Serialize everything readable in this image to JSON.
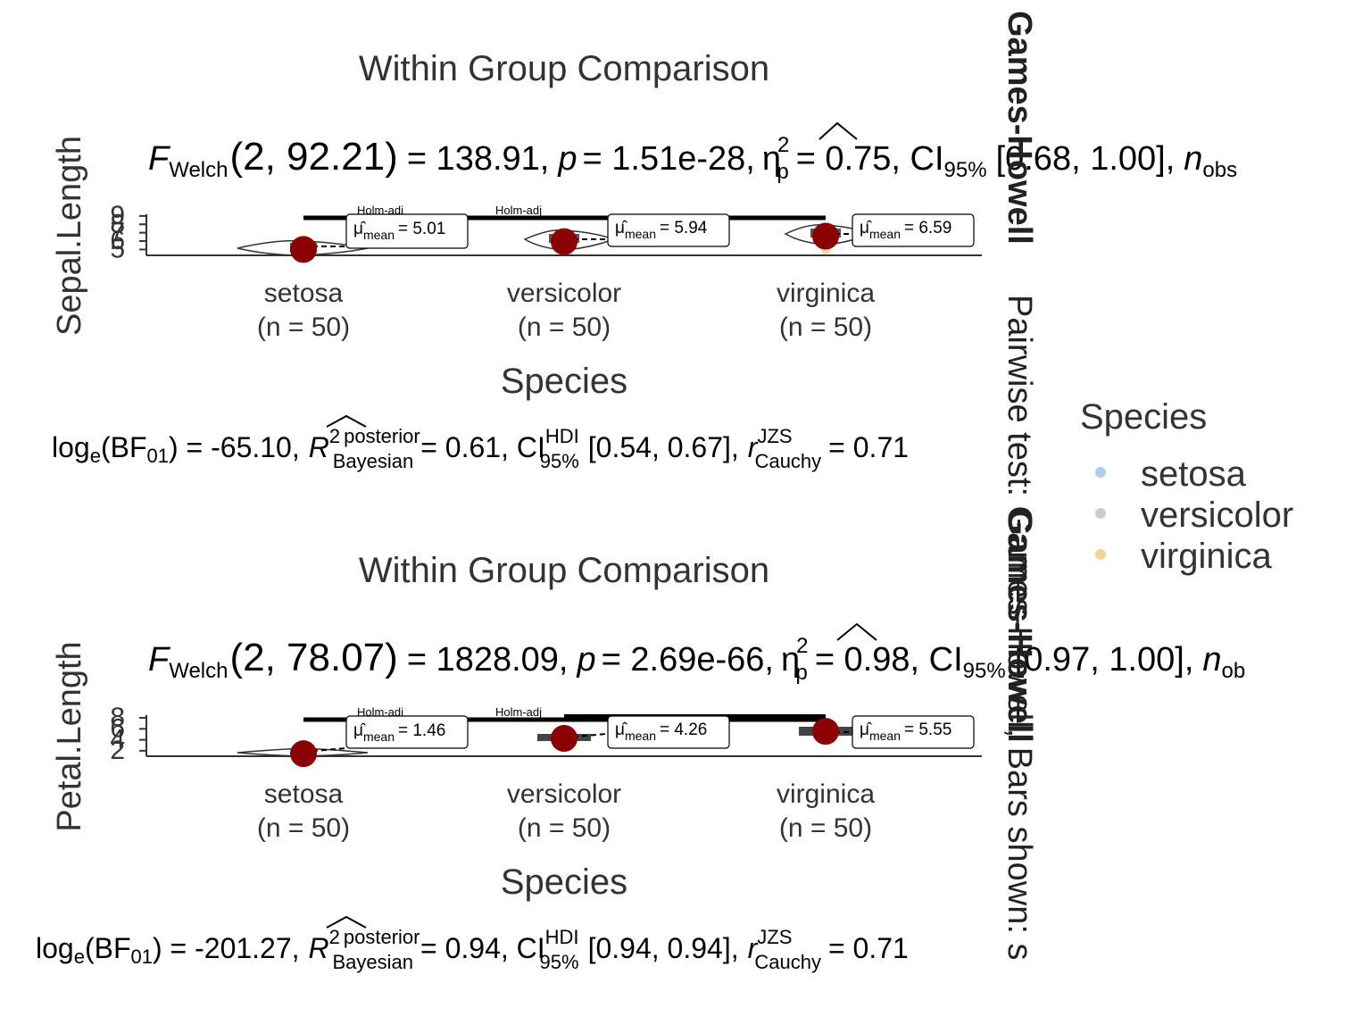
{
  "legend": {
    "title": "Species",
    "items": [
      {
        "label": "setosa",
        "color": "#a6c8ec"
      },
      {
        "label": "versicolor",
        "color": "#c8c8c8"
      },
      {
        "label": "virginica",
        "color": "#f2cf8e"
      }
    ]
  },
  "side_strip": {
    "bold_text": "Games-Howell",
    "text": "Pairwise test: Games-Howell, Bars shown: s"
  },
  "panels": [
    {
      "title": "Within Group Comparison",
      "ylabel": "Sepal.Length",
      "xlabel": "Species",
      "yticks": [
        "5",
        "6",
        "7",
        "8",
        "9"
      ],
      "stat": {
        "F": "F",
        "Fsub": "Welch",
        "df": "(2, 92.21)",
        "fval": "= 138.91,",
        "p": "p",
        "pval": "= 1.51e-28,",
        "eta": "η",
        "eta_sub": "p",
        "eta_sup": "2",
        "etaval": "= 0.75, CI",
        "ci_sub": "95%",
        "ci": "[0.68, 1.00],",
        "n": "n",
        "nsub": "obs"
      },
      "bayes": {
        "log": "log",
        "logsub": "e",
        "bf": "(BF",
        "bfsub": "01",
        "bfval": ") = -65.10,",
        "R": "R",
        "Rsup": "2",
        "Rsup2": "posterior",
        "Rsub": "Bayesian",
        "Rval": "= 0.61, CI",
        "cisup": "HDI",
        "cisub": "95%",
        "ci": "[0.54, 0.67],",
        "r": "r",
        "rsup": "JZS",
        "rsub": "Cauchy",
        "rval": "= 0.71"
      },
      "groups": [
        {
          "name": "setosa",
          "n": "(n = 50)",
          "mean_label": "= 5.01",
          "mean_sub": "mean",
          "mean_sym": "μ̂"
        },
        {
          "name": "versicolor",
          "n": "(n = 50)",
          "mean_label": "= 5.94",
          "mean_sub": "mean",
          "mean_sym": "μ̂"
        },
        {
          "name": "virginica",
          "n": "(n = 50)",
          "mean_label": "= 6.59",
          "mean_sub": "mean",
          "mean_sym": "μ̂"
        }
      ],
      "pair_labels": [
        "p",
        "Holm-adj",
        "p",
        "Holm-adj"
      ]
    },
    {
      "title": "Within Group Comparison",
      "ylabel": "Petal.Length",
      "xlabel": "Species",
      "yticks": [
        "2",
        "4",
        "6",
        "8"
      ],
      "stat": {
        "F": "F",
        "Fsub": "Welch",
        "df": "(2, 78.07)",
        "fval": "= 1828.09,",
        "p": "p",
        "pval": "= 2.69e-66,",
        "eta": "η",
        "eta_sub": "p",
        "eta_sup": "2",
        "etaval": "= 0.98, CI",
        "ci_sub": "95%",
        "ci": "[0.97, 1.00],",
        "n": "n",
        "nsub": "ob"
      },
      "bayes": {
        "log": "log",
        "logsub": "e",
        "bf": "(BF",
        "bfsub": "01",
        "bfval": ") = -201.27,",
        "R": "R",
        "Rsup": "2",
        "Rsup2": "posterior",
        "Rsub": "Bayesian",
        "Rval": "= 0.94, CI",
        "cisup": "HDI",
        "cisub": "95%",
        "ci": "[0.94, 0.94],",
        "r": "r",
        "rsup": "JZS",
        "rsub": "Cauchy",
        "rval": "= 0.71"
      },
      "groups": [
        {
          "name": "setosa",
          "n": "(n = 50)",
          "mean_label": "= 1.46",
          "mean_sub": "mean",
          "mean_sym": "μ̂"
        },
        {
          "name": "versicolor",
          "n": "(n = 50)",
          "mean_label": "= 4.26",
          "mean_sub": "mean",
          "mean_sym": "μ̂"
        },
        {
          "name": "virginica",
          "n": "(n = 50)",
          "mean_label": "= 5.55",
          "mean_sub": "mean",
          "mean_sym": "μ̂"
        }
      ],
      "pair_labels": [
        "p",
        "Holm-adj",
        "p",
        "Holm-adj"
      ]
    }
  ],
  "chart_data": [
    {
      "type": "scatter",
      "title": "Within Group Comparison",
      "xlabel": "Species",
      "ylabel": "Sepal.Length",
      "categories": [
        "setosa",
        "versicolor",
        "virginica"
      ],
      "means": [
        5.01,
        5.94,
        6.59
      ],
      "ylim": [
        4.3,
        9.2
      ],
      "yticks": [
        5,
        6,
        7,
        8,
        9
      ],
      "mean_color": "#8b0000"
    },
    {
      "type": "scatter",
      "title": "Within Group Comparison",
      "xlabel": "Species",
      "ylabel": "Petal.Length",
      "categories": [
        "setosa",
        "versicolor",
        "virginica"
      ],
      "means": [
        1.46,
        4.26,
        5.55
      ],
      "ylim": [
        1.0,
        8.5
      ],
      "yticks": [
        2,
        4,
        6,
        8
      ],
      "mean_color": "#8b0000"
    }
  ]
}
